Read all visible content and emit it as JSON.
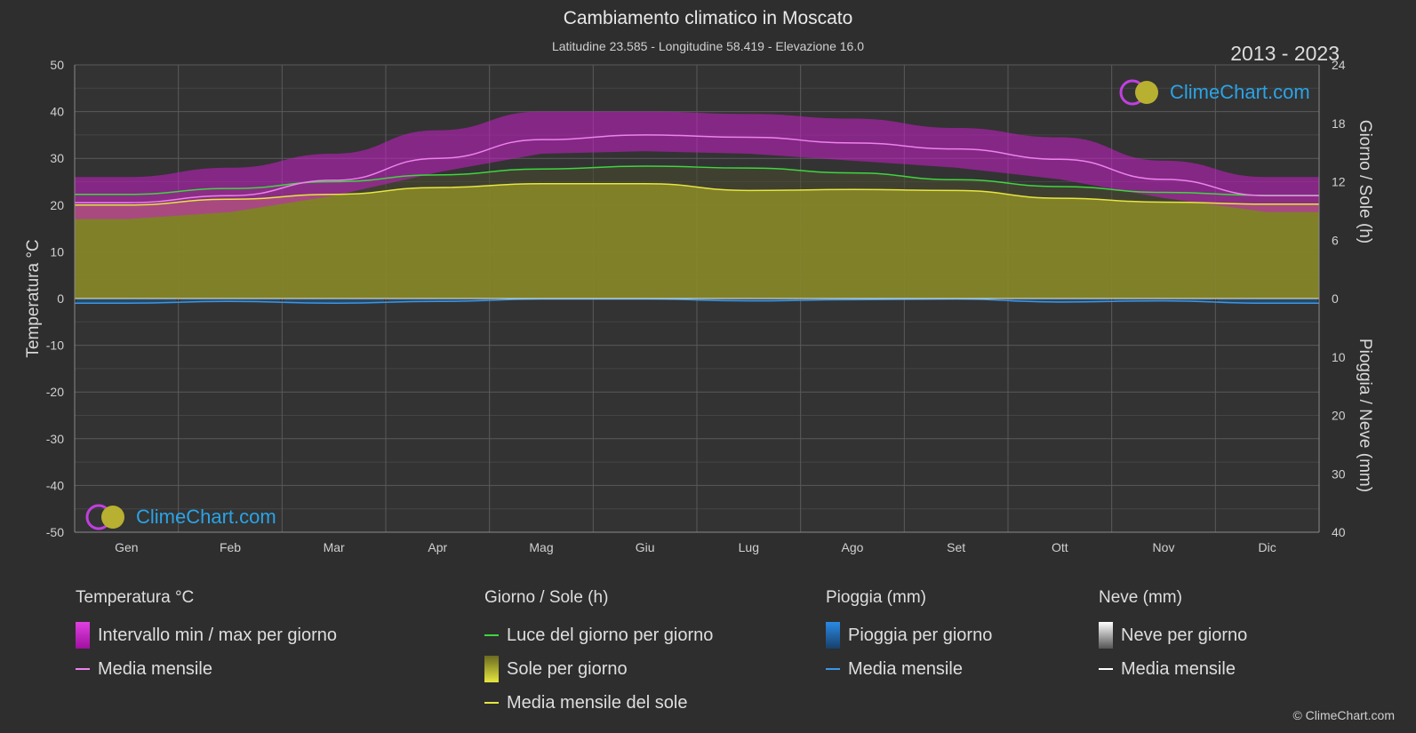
{
  "chart_data": {
    "type": "area",
    "title": "Cambiamento climatico in Moscato",
    "subtitle": "Latitudine 23.585 - Longitudine 58.419 - Elevazione 16.0",
    "years": "2013 - 2023",
    "categories": [
      "Gen",
      "Feb",
      "Mar",
      "Apr",
      "Mag",
      "Giu",
      "Lug",
      "Ago",
      "Set",
      "Ott",
      "Nov",
      "Dic"
    ],
    "y_left": {
      "label": "Temperatura °C",
      "ylim": [
        -50,
        50
      ],
      "ticks": [
        50,
        40,
        30,
        20,
        10,
        0,
        -10,
        -20,
        -30,
        -40,
        -50
      ]
    },
    "y_right_top": {
      "label": "Giorno / Sole (h)",
      "ylim": [
        0,
        24
      ],
      "ticks": [
        24,
        18,
        12,
        6,
        0
      ]
    },
    "y_right_bottom": {
      "label": "Pioggia / Neve (mm)",
      "ylim": [
        0,
        40
      ],
      "ticks": [
        10,
        20,
        30,
        40
      ]
    },
    "grid": true,
    "series": [
      {
        "name": "Media mensile",
        "axis": "temp",
        "color": "#ee82ee",
        "values": [
          20.5,
          22.0,
          25.3,
          30.0,
          34.0,
          35.0,
          34.5,
          33.3,
          32.0,
          29.8,
          25.5,
          22.0
        ]
      },
      {
        "name": "Intervallo min / max per giorno",
        "axis": "temp",
        "color": "#c81ec8",
        "min": [
          17,
          18.5,
          22,
          27,
          31,
          31.5,
          31,
          29.5,
          28,
          25.5,
          21.5,
          18.5
        ],
        "max": [
          26,
          28,
          31,
          36,
          40,
          40,
          39.5,
          38.5,
          36.5,
          34.5,
          29.5,
          26
        ]
      },
      {
        "name": "Luce del giorno per giorno",
        "axis": "sun",
        "color": "#3ed63e",
        "values": [
          10.7,
          11.3,
          12.0,
          12.7,
          13.3,
          13.6,
          13.4,
          12.9,
          12.2,
          11.5,
          10.9,
          10.6
        ]
      },
      {
        "name": "Sole per giorno",
        "axis": "sun",
        "color": "#c8c832",
        "values": [
          9.6,
          10.2,
          10.7,
          11.4,
          11.8,
          11.8,
          11.1,
          11.2,
          11.1,
          10.3,
          9.9,
          9.7
        ]
      },
      {
        "name": "Media mensile del sole",
        "axis": "sun",
        "color": "#e6e640",
        "values": [
          9.6,
          10.2,
          10.7,
          11.4,
          11.8,
          11.8,
          11.1,
          11.2,
          11.1,
          10.3,
          9.9,
          9.7
        ]
      },
      {
        "name": "Pioggia per giorno",
        "axis": "rain",
        "color": "#1e78c8",
        "values": [
          0.8,
          0.5,
          0.8,
          0.5,
          0.1,
          0.1,
          0.4,
          0.2,
          0.1,
          0.6,
          0.4,
          0.8
        ]
      },
      {
        "name": "Media mensile",
        "axis": "rain",
        "color": "#3a96e6",
        "values": [
          0.8,
          0.5,
          0.8,
          0.5,
          0.1,
          0.1,
          0.4,
          0.2,
          0.1,
          0.6,
          0.4,
          0.8
        ]
      }
    ]
  },
  "legend": {
    "temp": {
      "header": "Temperatura °C",
      "items": [
        "Intervallo min / max per giorno",
        "Media mensile"
      ]
    },
    "sun": {
      "header": "Giorno / Sole (h)",
      "items": [
        "Luce del giorno per giorno",
        "Sole per giorno",
        "Media mensile del sole"
      ]
    },
    "rain": {
      "header": "Pioggia (mm)",
      "items": [
        "Pioggia per giorno",
        "Media mensile"
      ]
    },
    "snow": {
      "header": "Neve (mm)",
      "items": [
        "Neve per giorno",
        "Media mensile"
      ]
    }
  },
  "logo_text": "ClimeChart.com",
  "copyright": "© ClimeChart.com",
  "colors": {
    "background": "#2e2e2e",
    "temp_range": "#c81ec8",
    "temp_mean": "#ee82ee",
    "daylight": "#3ed63e",
    "sun_area": "#8c8c28",
    "sun_mean": "#e6e640",
    "rain": "#1e78c8",
    "snow": "#ffffff"
  }
}
